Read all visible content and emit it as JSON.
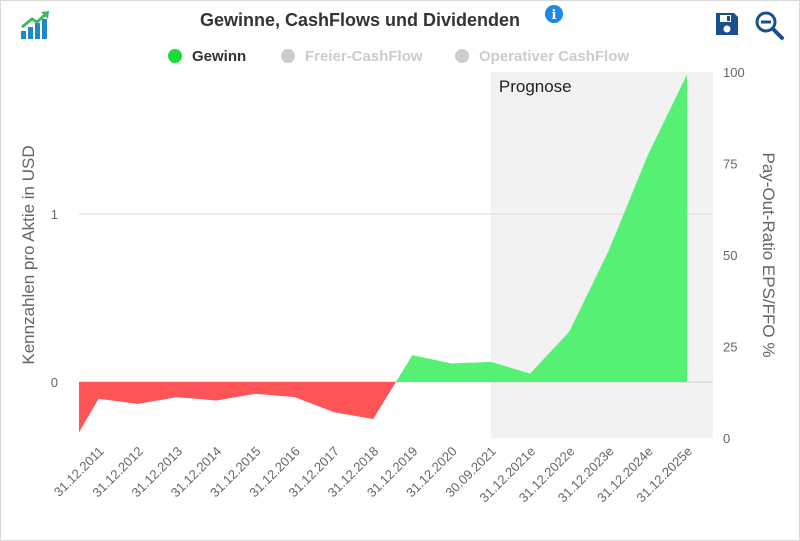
{
  "toolbar": {
    "logo_icon": "growth-chart-logo-icon",
    "save_icon": "floppy-disk-icon",
    "zoom_icon": "zoom-out-icon",
    "info_icon": "info-icon",
    "info_glyph": "i"
  },
  "colors": {
    "positive": "#55f074",
    "negative": "#fd5457",
    "legend_active": "#1bdb3b",
    "legend_inactive": "#cccccc",
    "accent": "#1a4f8f",
    "forecast_band": "#f2f2f2"
  },
  "chart_data": {
    "type": "area",
    "title": "Gewinne, CashFlows und Dividenden",
    "legend": [
      {
        "label": "Gewinn",
        "active": true
      },
      {
        "label": "Freier-CashFlow",
        "active": false
      },
      {
        "label": "Operativer CashFlow",
        "active": false
      }
    ],
    "legend_position": "top-center",
    "categories": [
      "31.12.2011",
      "31.12.2012",
      "31.12.2013",
      "31.12.2014",
      "31.12.2015",
      "31.12.2016",
      "31.12.2017",
      "31.12.2018",
      "31.12.2019",
      "31.12.2020",
      "30.09.2021",
      "31.12.2021e",
      "31.12.2022e",
      "31.12.2023e",
      "31.12.2024e",
      "31.12.2025e"
    ],
    "series": [
      {
        "name": "Gewinn",
        "values": [
          -0.1,
          -0.13,
          -0.09,
          -0.11,
          -0.07,
          -0.09,
          -0.18,
          -0.22,
          0.16,
          0.11,
          0.12,
          0.05,
          0.3,
          0.78,
          1.35,
          1.83
        ]
      }
    ],
    "start_value": -0.3,
    "yleft": {
      "label": "Kennzahlen pro Aktie in USD",
      "ticks": [
        "0",
        "1"
      ],
      "range": [
        -0.32,
        1.92
      ]
    },
    "yright": {
      "label": "Pay-Out-Ratio EPS/FFO %",
      "ticks": [
        "0",
        "25",
        "50",
        "75",
        "100"
      ],
      "range": [
        0,
        100
      ]
    },
    "grid": true,
    "forecast_band": {
      "label": "Prognose",
      "from_index": 10
    }
  }
}
